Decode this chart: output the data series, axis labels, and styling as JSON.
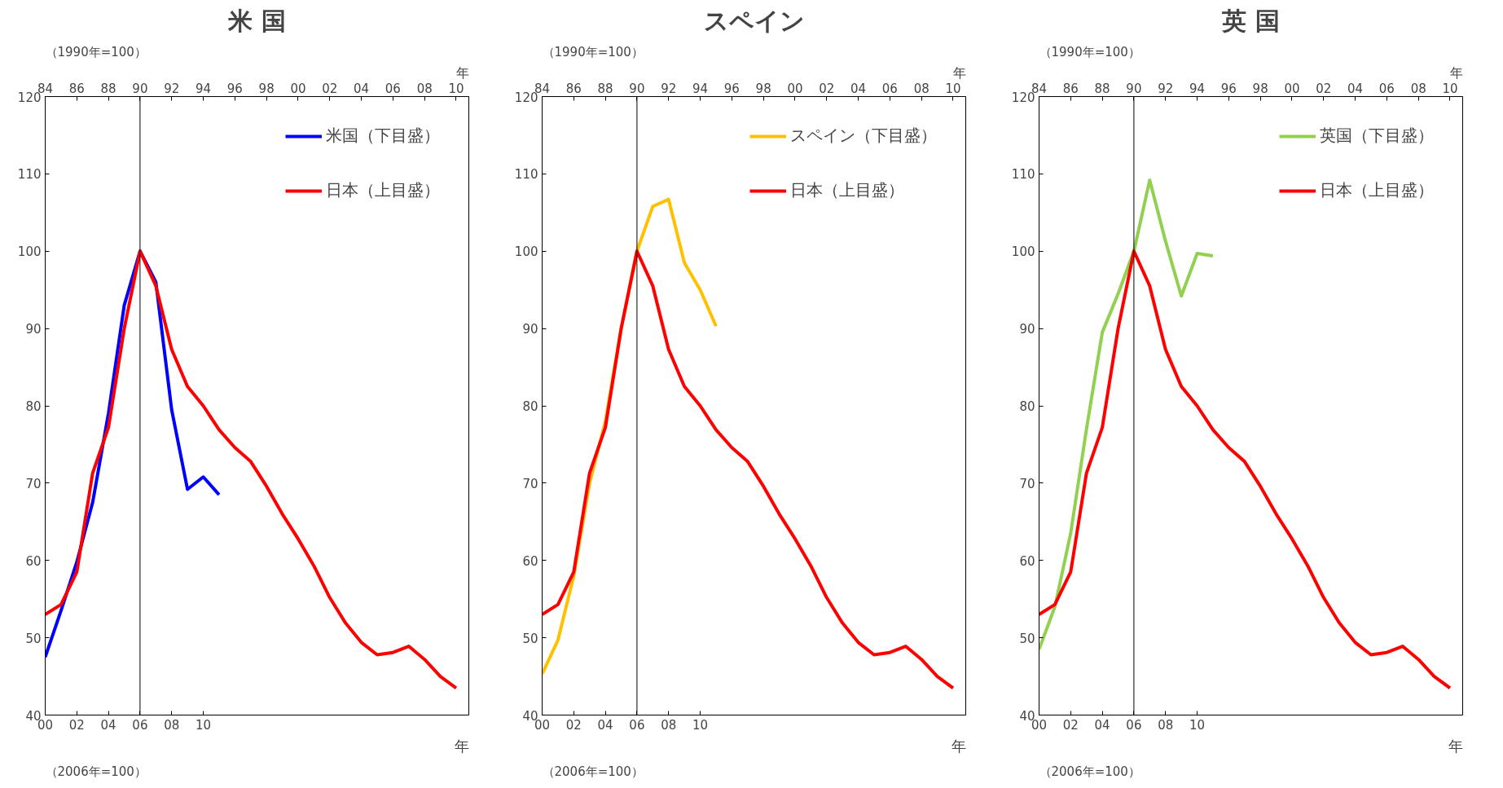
{
  "chart_data": [
    {
      "type": "line",
      "title": "米 国",
      "xlabel": "年",
      "legend": "top right",
      "grid": false,
      "line_style": "solid",
      "xlim": [
        2000,
        2026.8
      ],
      "xticks": [
        {
          "value": 2000,
          "label": "00"
        },
        {
          "value": 2002,
          "label": "02"
        },
        {
          "value": 2004,
          "label": "04"
        },
        {
          "value": 2006,
          "label": "06"
        },
        {
          "value": 2008,
          "label": "08"
        },
        {
          "value": 2010,
          "label": "10"
        }
      ],
      "x2lim": [
        1984,
        2010.8
      ],
      "x2ticks": [
        {
          "value": 1984,
          "label": "84"
        },
        {
          "value": 1986,
          "label": "86"
        },
        {
          "value": 1988,
          "label": "88"
        },
        {
          "value": 1990,
          "label": "90"
        },
        {
          "value": 1992,
          "label": "92"
        },
        {
          "value": 1994,
          "label": "94"
        },
        {
          "value": 1996,
          "label": "96"
        },
        {
          "value": 1998,
          "label": "98"
        },
        {
          "value": 2000,
          "label": "00"
        },
        {
          "value": 2002,
          "label": "02"
        },
        {
          "value": 2004,
          "label": "04"
        },
        {
          "value": 2006,
          "label": "06"
        },
        {
          "value": 2008,
          "label": "08"
        },
        {
          "value": 2010,
          "label": "10"
        }
      ],
      "ylim": [
        40,
        120
      ],
      "yticks": [
        40,
        50,
        60,
        70,
        80,
        90,
        100,
        110,
        120
      ],
      "annotations": [
        "（1990年=100）",
        "（2006年=100）"
      ],
      "ref_lines": [
        {
          "axis": "x",
          "value": 2006,
          "label": null,
          "color": "#000000"
        }
      ],
      "x2label": "年",
      "series": [
        {
          "name": "米国（下目盛）",
          "color": "#0000ff",
          "x": [
            2000,
            2001,
            2002,
            2003,
            2004,
            2005,
            2006,
            2007,
            2008,
            2009,
            2010,
            2011
          ],
          "values": [
            47.5,
            53.5,
            59.8,
            67.5,
            79,
            93,
            100,
            96,
            79.5,
            69.2,
            70.8,
            68.5
          ]
        },
        {
          "name": "日本（上目盛）",
          "color": "#ff0000",
          "axis": "x2",
          "x": [
            1984,
            1985,
            1986,
            1987,
            1988,
            1989,
            1990,
            1991,
            1992,
            1993,
            1994,
            1995,
            1996,
            1997,
            1998,
            1999,
            2000,
            2001,
            2002,
            2003,
            2004,
            2005,
            2006,
            2007,
            2008,
            2009,
            2010
          ],
          "values": [
            53,
            54.3,
            58.5,
            71.3,
            77.2,
            90,
            100,
            95.5,
            87.3,
            82.5,
            80,
            76.9,
            74.6,
            72.8,
            69.6,
            66,
            62.8,
            59.3,
            55.2,
            51.9,
            49.4,
            47.8,
            48.1,
            48.9,
            47.2,
            45,
            43.5
          ]
        }
      ]
    },
    {
      "type": "line",
      "title": "スペイン",
      "xlabel": "年",
      "legend": "top right",
      "grid": false,
      "line_style": "solid",
      "xlim": [
        2000,
        2026.8
      ],
      "xticks": [
        {
          "value": 2000,
          "label": "00"
        },
        {
          "value": 2002,
          "label": "02"
        },
        {
          "value": 2004,
          "label": "04"
        },
        {
          "value": 2006,
          "label": "06"
        },
        {
          "value": 2008,
          "label": "08"
        },
        {
          "value": 2010,
          "label": "10"
        }
      ],
      "x2lim": [
        1984,
        2010.8
      ],
      "x2ticks": [
        {
          "value": 1984,
          "label": "84"
        },
        {
          "value": 1986,
          "label": "86"
        },
        {
          "value": 1988,
          "label": "88"
        },
        {
          "value": 1990,
          "label": "90"
        },
        {
          "value": 1992,
          "label": "92"
        },
        {
          "value": 1994,
          "label": "94"
        },
        {
          "value": 1996,
          "label": "96"
        },
        {
          "value": 1998,
          "label": "98"
        },
        {
          "value": 2000,
          "label": "00"
        },
        {
          "value": 2002,
          "label": "02"
        },
        {
          "value": 2004,
          "label": "04"
        },
        {
          "value": 2006,
          "label": "06"
        },
        {
          "value": 2008,
          "label": "08"
        },
        {
          "value": 2010,
          "label": "10"
        }
      ],
      "ylim": [
        40,
        120
      ],
      "yticks": [
        40,
        50,
        60,
        70,
        80,
        90,
        100,
        110,
        120
      ],
      "annotations": [
        "（1990年=100）",
        "（2006年=100）"
      ],
      "ref_lines": [
        {
          "axis": "x",
          "value": 2006,
          "label": null,
          "color": "#000000"
        }
      ],
      "x2label": "年",
      "series": [
        {
          "name": "スペイン（下目盛）",
          "color": "#ffc000",
          "x": [
            2000,
            2001,
            2002,
            2003,
            2004,
            2005,
            2006,
            2007,
            2008,
            2009,
            2010,
            2011
          ],
          "values": [
            45.3,
            49.7,
            58,
            70,
            78,
            90,
            100,
            105.8,
            106.7,
            98.5,
            95,
            90.3
          ]
        },
        {
          "name": "日本（上目盛）",
          "color": "#ff0000",
          "axis": "x2",
          "x": [
            1984,
            1985,
            1986,
            1987,
            1988,
            1989,
            1990,
            1991,
            1992,
            1993,
            1994,
            1995,
            1996,
            1997,
            1998,
            1999,
            2000,
            2001,
            2002,
            2003,
            2004,
            2005,
            2006,
            2007,
            2008,
            2009,
            2010
          ],
          "values": [
            53,
            54.3,
            58.5,
            71.3,
            77.2,
            90,
            100,
            95.5,
            87.3,
            82.5,
            80,
            76.9,
            74.6,
            72.8,
            69.6,
            66,
            62.8,
            59.3,
            55.2,
            51.9,
            49.4,
            47.8,
            48.1,
            48.9,
            47.2,
            45,
            43.5
          ]
        }
      ]
    },
    {
      "type": "line",
      "title": "英 国",
      "xlabel": "年",
      "legend": "top right",
      "grid": false,
      "line_style": "solid",
      "xlim": [
        2000,
        2026.8
      ],
      "xticks": [
        {
          "value": 2000,
          "label": "00"
        },
        {
          "value": 2002,
          "label": "02"
        },
        {
          "value": 2004,
          "label": "04"
        },
        {
          "value": 2006,
          "label": "06"
        },
        {
          "value": 2008,
          "label": "08"
        },
        {
          "value": 2010,
          "label": "10"
        }
      ],
      "x2lim": [
        1984,
        2010.8
      ],
      "x2ticks": [
        {
          "value": 1984,
          "label": "84"
        },
        {
          "value": 1986,
          "label": "86"
        },
        {
          "value": 1988,
          "label": "88"
        },
        {
          "value": 1990,
          "label": "90"
        },
        {
          "value": 1992,
          "label": "92"
        },
        {
          "value": 1994,
          "label": "94"
        },
        {
          "value": 1996,
          "label": "96"
        },
        {
          "value": 1998,
          "label": "98"
        },
        {
          "value": 2000,
          "label": "00"
        },
        {
          "value": 2002,
          "label": "02"
        },
        {
          "value": 2004,
          "label": "04"
        },
        {
          "value": 2006,
          "label": "06"
        },
        {
          "value": 2008,
          "label": "08"
        },
        {
          "value": 2010,
          "label": "10"
        }
      ],
      "ylim": [
        40,
        120
      ],
      "yticks": [
        40,
        50,
        60,
        70,
        80,
        90,
        100,
        110,
        120
      ],
      "annotations": [
        "（1990年=100）",
        "（2006年=100）"
      ],
      "ref_lines": [
        {
          "axis": "x",
          "value": 2006,
          "label": null,
          "color": "#000000"
        }
      ],
      "x2label": "年",
      "series": [
        {
          "name": "英国（下目盛）",
          "color": "#92d050",
          "x": [
            2000,
            2001,
            2002,
            2003,
            2004,
            2005,
            2006,
            2007,
            2008,
            2009,
            2010,
            2011
          ],
          "values": [
            48.5,
            54,
            63.5,
            77,
            89.5,
            94.5,
            100,
            109.2,
            101.3,
            94.2,
            99.7,
            99.4
          ]
        },
        {
          "name": "日本（上目盛）",
          "color": "#ff0000",
          "axis": "x2",
          "x": [
            1984,
            1985,
            1986,
            1987,
            1988,
            1989,
            1990,
            1991,
            1992,
            1993,
            1994,
            1995,
            1996,
            1997,
            1998,
            1999,
            2000,
            2001,
            2002,
            2003,
            2004,
            2005,
            2006,
            2007,
            2008,
            2009,
            2010
          ],
          "values": [
            53,
            54.3,
            58.5,
            71.3,
            77.2,
            90,
            100,
            95.5,
            87.3,
            82.5,
            80,
            76.9,
            74.6,
            72.8,
            69.6,
            66,
            62.8,
            59.3,
            55.2,
            51.9,
            49.4,
            47.8,
            48.1,
            48.9,
            47.2,
            45,
            43.5
          ]
        }
      ]
    }
  ]
}
